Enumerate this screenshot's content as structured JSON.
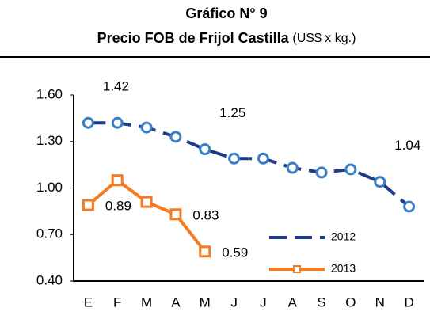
{
  "chart_data": {
    "type": "line",
    "title": "Gráfico N° 9",
    "subtitle": "Precio FOB de Frijol Castilla",
    "subtitle_unit": "(US$ x kg.)",
    "categories": [
      "E",
      "F",
      "M",
      "A",
      "M",
      "J",
      "J",
      "A",
      "S",
      "O",
      "N",
      "D"
    ],
    "series": [
      {
        "name": "2012",
        "color": "#1f3c88",
        "marker_color": "#3a7fc1",
        "dash": true,
        "values": [
          1.42,
          1.42,
          1.39,
          1.33,
          1.25,
          1.19,
          1.19,
          1.13,
          1.1,
          1.12,
          1.04,
          0.88
        ],
        "value_labels": [
          "1.42",
          null,
          null,
          null,
          "1.25",
          null,
          null,
          null,
          null,
          null,
          "1.04",
          null
        ]
      },
      {
        "name": "2013",
        "color": "#f47b20",
        "marker_color": "#f47b20",
        "dash": false,
        "values": [
          0.89,
          1.05,
          0.91,
          0.83,
          0.59,
          null,
          null,
          null,
          null,
          null,
          null,
          null
        ],
        "value_labels": [
          "0.89",
          null,
          null,
          "0.83",
          "0.59",
          null,
          null,
          null,
          null,
          null,
          null,
          null
        ]
      }
    ],
    "ylim": [
      0.4,
      1.6
    ],
    "yticks": [
      {
        "value": 0.4,
        "label": "0.40"
      },
      {
        "value": 0.7,
        "label": "0.70"
      },
      {
        "value": 1.0,
        "label": "1.00"
      },
      {
        "value": 1.3,
        "label": "1.30"
      },
      {
        "value": 1.6,
        "label": "1.60"
      }
    ],
    "grid": false,
    "legend": "lower right"
  }
}
